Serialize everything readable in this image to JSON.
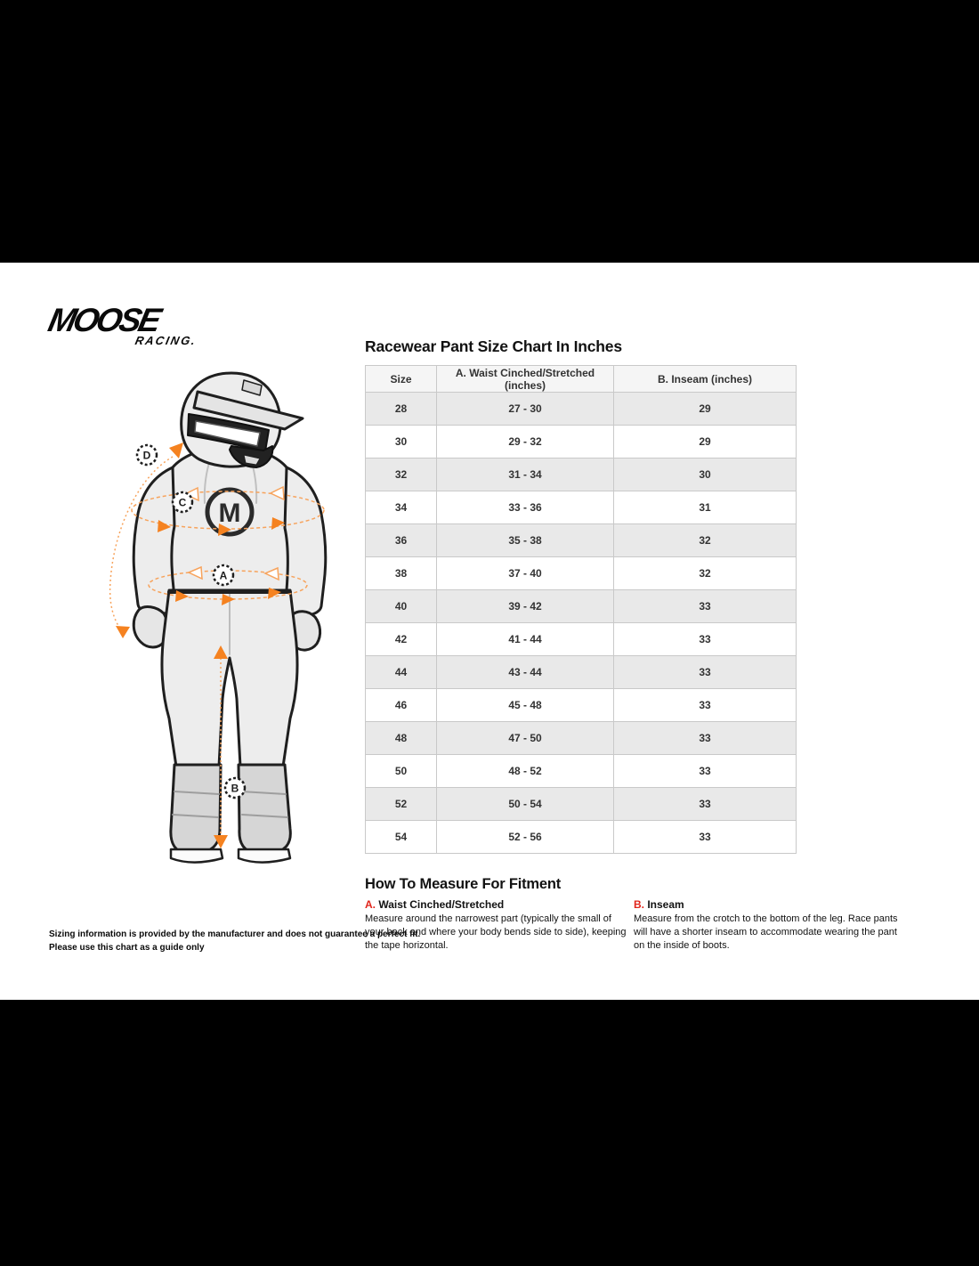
{
  "title": "Racewear Pant Size Chart In Inches",
  "brand": {
    "name": "MOOSE",
    "sub": "RACING.",
    "monogram": "M"
  },
  "table": {
    "headers": [
      "Size",
      "A. Waist Cinched/Stretched (inches)",
      "B. Inseam (inches)"
    ],
    "rows": [
      [
        "28",
        "27 - 30",
        "29"
      ],
      [
        "30",
        "29 - 32",
        "29"
      ],
      [
        "32",
        "31 - 34",
        "30"
      ],
      [
        "34",
        "33 - 36",
        "31"
      ],
      [
        "36",
        "35 - 38",
        "32"
      ],
      [
        "38",
        "37 - 40",
        "32"
      ],
      [
        "40",
        "39 - 42",
        "33"
      ],
      [
        "42",
        "41 - 44",
        "33"
      ],
      [
        "44",
        "43 - 44",
        "33"
      ],
      [
        "46",
        "45 - 48",
        "33"
      ],
      [
        "48",
        "47 - 50",
        "33"
      ],
      [
        "50",
        "48 - 52",
        "33"
      ],
      [
        "52",
        "50 - 54",
        "33"
      ],
      [
        "54",
        "52 - 56",
        "33"
      ]
    ]
  },
  "how_to": {
    "heading": "How To Measure For Fitment",
    "items": [
      {
        "prefix": "A.",
        "title": "Waist Cinched/Stretched",
        "body": "Measure around the narrowest part (typically the small of your back and where your body bends side to side), keeping the tape horizontal."
      },
      {
        "prefix": "B.",
        "title": "Inseam",
        "body": "Measure from the crotch to the bottom of the leg. Race pants will have a shorter inseam to accommodate wearing the pant on the inside of boots."
      }
    ]
  },
  "disclaimer": "Sizing information is provided by the manufacturer and does not guarantee a perfect fit. Please use this chart as a guide only",
  "figure": {
    "labels": [
      "A",
      "B",
      "C",
      "D"
    ]
  },
  "colors": {
    "accent_orange": "#F58220",
    "accent_orange_light": "#F7A35C",
    "accent_red": "#E1251B",
    "row_alt": "#e9e9e9",
    "header_bg": "#f5f5f5",
    "table_border": "#c9c9c9"
  }
}
